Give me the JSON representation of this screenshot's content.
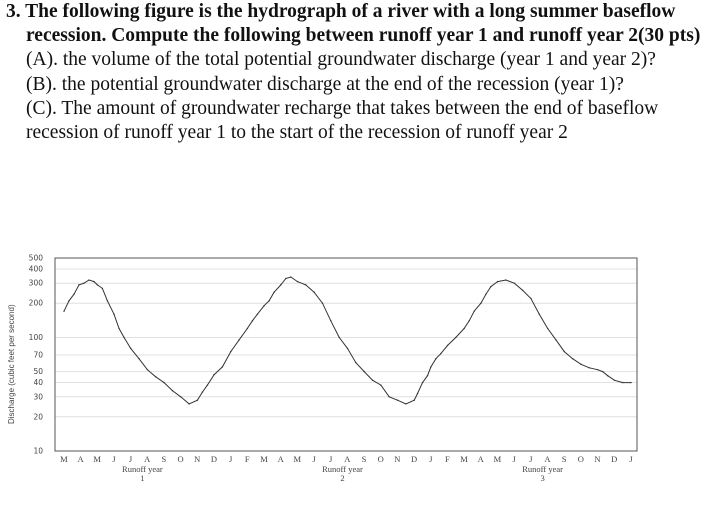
{
  "question": {
    "heading": "3. The following figure is the hydrograph of a river with a long summer baseflow recession. Compute the following between runoff year 1 and runoff year 2(30 pts)",
    "part_a": "(A). the volume of the total potential groundwater discharge (year 1 and year 2)?",
    "part_b": "(B). the potential groundwater discharge at the end of the recession (year 1)?",
    "part_c": "(C). The amount of groundwater recharge that takes between the end of baseflow recession of runoff year 1 to the start of the recession of runoff year 2"
  },
  "chart_data": {
    "type": "line",
    "ylabel": "Discharge (cubic feet per second)",
    "yscale": "log",
    "ylim": [
      10,
      500
    ],
    "yticks": [
      500,
      400,
      300,
      200,
      100,
      70,
      50,
      40,
      30,
      20,
      10
    ],
    "grid": true,
    "x_month_labels": [
      "M",
      "A",
      "M",
      "J",
      "J",
      "A",
      "S",
      "O",
      "N",
      "D",
      "J",
      "F",
      "M",
      "A",
      "M",
      "J",
      "J",
      "A",
      "S",
      "O",
      "N",
      "D",
      "J",
      "F",
      "M",
      "A",
      "M",
      "J",
      "J",
      "A",
      "S",
      "O",
      "N",
      "D",
      "J"
    ],
    "runoff_year_labels": [
      {
        "text": "Runoff year",
        "number": "1"
      },
      {
        "text": "Runoff year",
        "number": "2"
      },
      {
        "text": "Runoff year",
        "number": "3"
      }
    ],
    "series": [
      {
        "x": [
          0,
          0.3,
          0.6,
          0.9,
          1.2,
          1.5,
          1.8,
          2.0,
          2.3,
          2.6,
          3.0,
          3.3,
          3.6,
          4.0,
          4.5,
          5.0,
          5.5,
          6.0,
          6.5,
          7.0,
          7.5,
          8.0,
          8.3,
          8.6,
          9.0,
          9.5,
          10.0,
          10.5,
          11.0,
          11.3,
          11.6,
          12.0,
          12.3,
          12.6,
          13.0,
          13.3,
          13.6,
          14.0,
          14.5,
          15.0,
          15.5,
          16.0,
          16.5,
          17.0,
          17.5,
          18.0,
          18.5,
          19.0,
          19.5,
          20.0,
          20.5,
          21.0,
          21.2,
          21.5,
          21.8,
          22.0,
          22.3,
          22.6,
          23.0,
          23.5,
          24.0,
          24.3,
          24.6,
          25.0,
          25.3,
          25.6,
          26.0,
          26.5,
          27.0,
          27.5,
          28.0,
          28.5,
          29.0,
          29.5,
          30.0,
          30.5,
          31.0,
          31.5,
          32.0,
          32.3,
          32.6,
          33.0,
          33.5,
          34.0
        ],
        "y": [
          170,
          210,
          240,
          290,
          300,
          320,
          310,
          290,
          270,
          210,
          160,
          120,
          100,
          80,
          65,
          52,
          45,
          40,
          34,
          30,
          26,
          28,
          33,
          38,
          47,
          55,
          75,
          95,
          120,
          140,
          160,
          190,
          210,
          250,
          290,
          330,
          340,
          310,
          290,
          250,
          200,
          140,
          100,
          80,
          60,
          50,
          42,
          38,
          30,
          28,
          26,
          28,
          32,
          40,
          46,
          55,
          65,
          72,
          85,
          100,
          120,
          140,
          170,
          200,
          240,
          280,
          310,
          320,
          300,
          260,
          220,
          160,
          120,
          95,
          75,
          65,
          58,
          54,
          52,
          50,
          46,
          42,
          40,
          40
        ]
      }
    ]
  }
}
